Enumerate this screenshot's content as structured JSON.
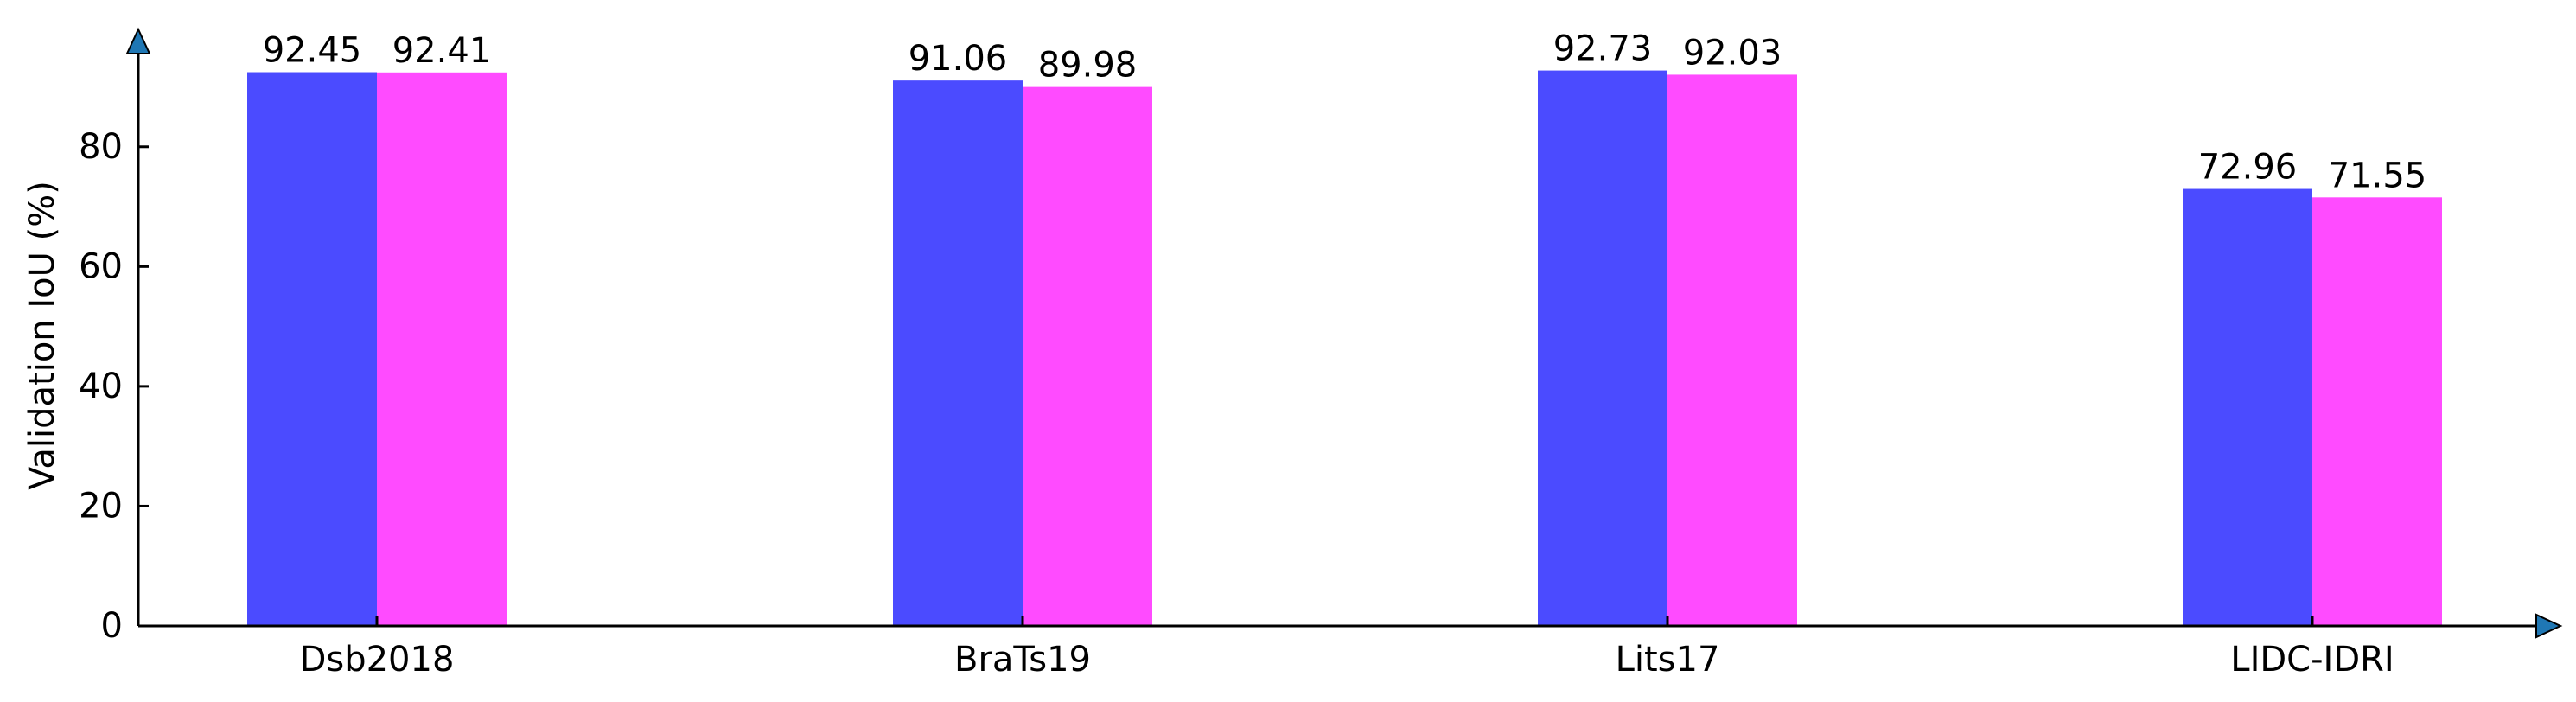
{
  "chart_data": {
    "type": "bar",
    "title": "",
    "xlabel": "",
    "ylabel": "Validation IoU (%)",
    "categories": [
      "Dsb2018",
      "BraTs19",
      "Lits17",
      "LIDC-IDRI"
    ],
    "series": [
      {
        "values": [
          92.45,
          91.06,
          92.73,
          72.96
        ],
        "color": "#4b4bff"
      },
      {
        "values": [
          92.41,
          89.98,
          92.03,
          71.55
        ],
        "color": "#ff4bff"
      }
    ],
    "ylim": [
      0,
      97
    ],
    "yticks": [
      0,
      20,
      40,
      60,
      80
    ],
    "grid": false,
    "data_labels": true,
    "axis_arrow_color": "#1f77b4"
  }
}
